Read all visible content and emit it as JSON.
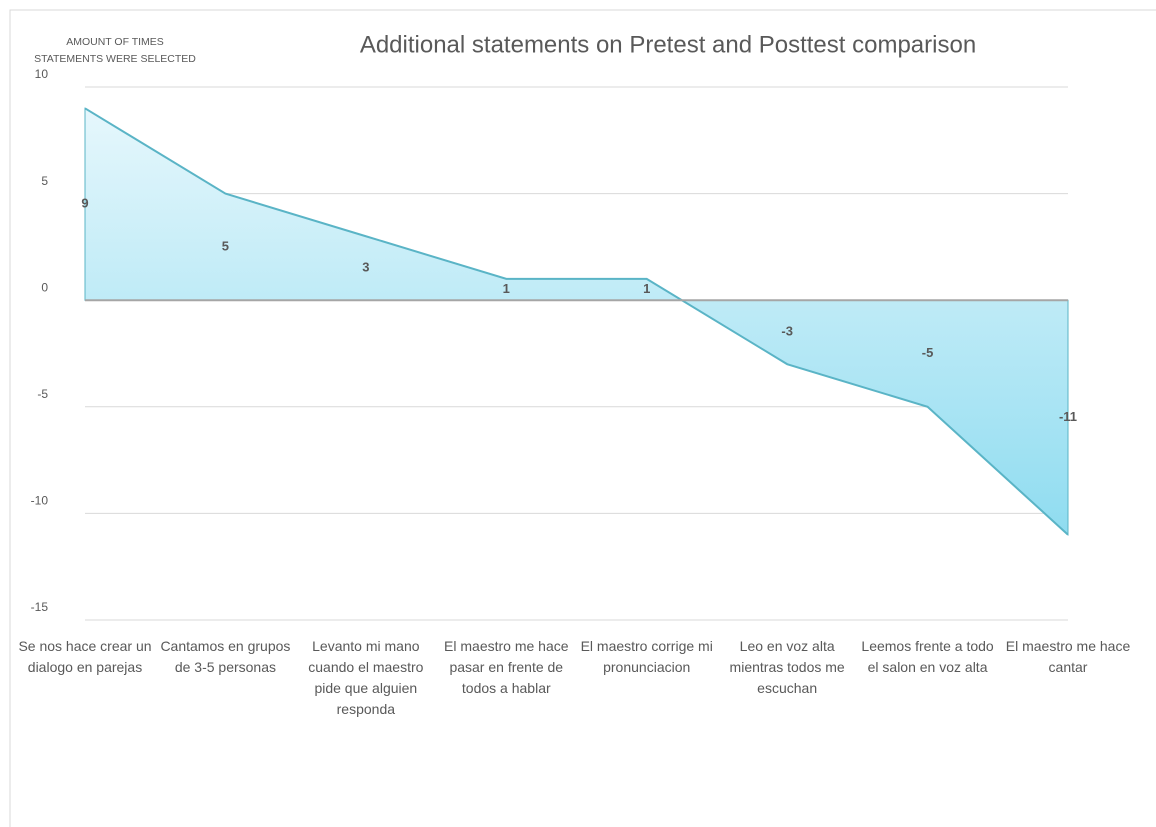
{
  "chart_data": {
    "type": "area",
    "title": "Additional statements on Pretest and Posttest comparison",
    "y_label": [
      "AMOUNT OF  TIMES",
      "STATEMENTS WERE SELECTED"
    ],
    "categories": [
      "Se nos hace crear un dialogo en parejas",
      "Cantamos en grupos de 3-5 personas",
      "Levanto mi mano cuando el maestro pide que alguien responda",
      "El maestro me hace pasar en frente de todos a hablar",
      "El maestro corrige mi pronunciacion",
      "Leo en voz alta mientras todos me escuchan",
      "Leemos frente a todo el salon en voz alta",
      "El maestro me hace cantar"
    ],
    "values": [
      9,
      5,
      3,
      1,
      1,
      -3,
      -5,
      -11
    ],
    "color": "#5ab4c6",
    "ylim": [
      -15,
      10
    ],
    "yticks": [
      -15,
      -10,
      -5,
      0,
      5,
      10
    ],
    "grid": true
  }
}
